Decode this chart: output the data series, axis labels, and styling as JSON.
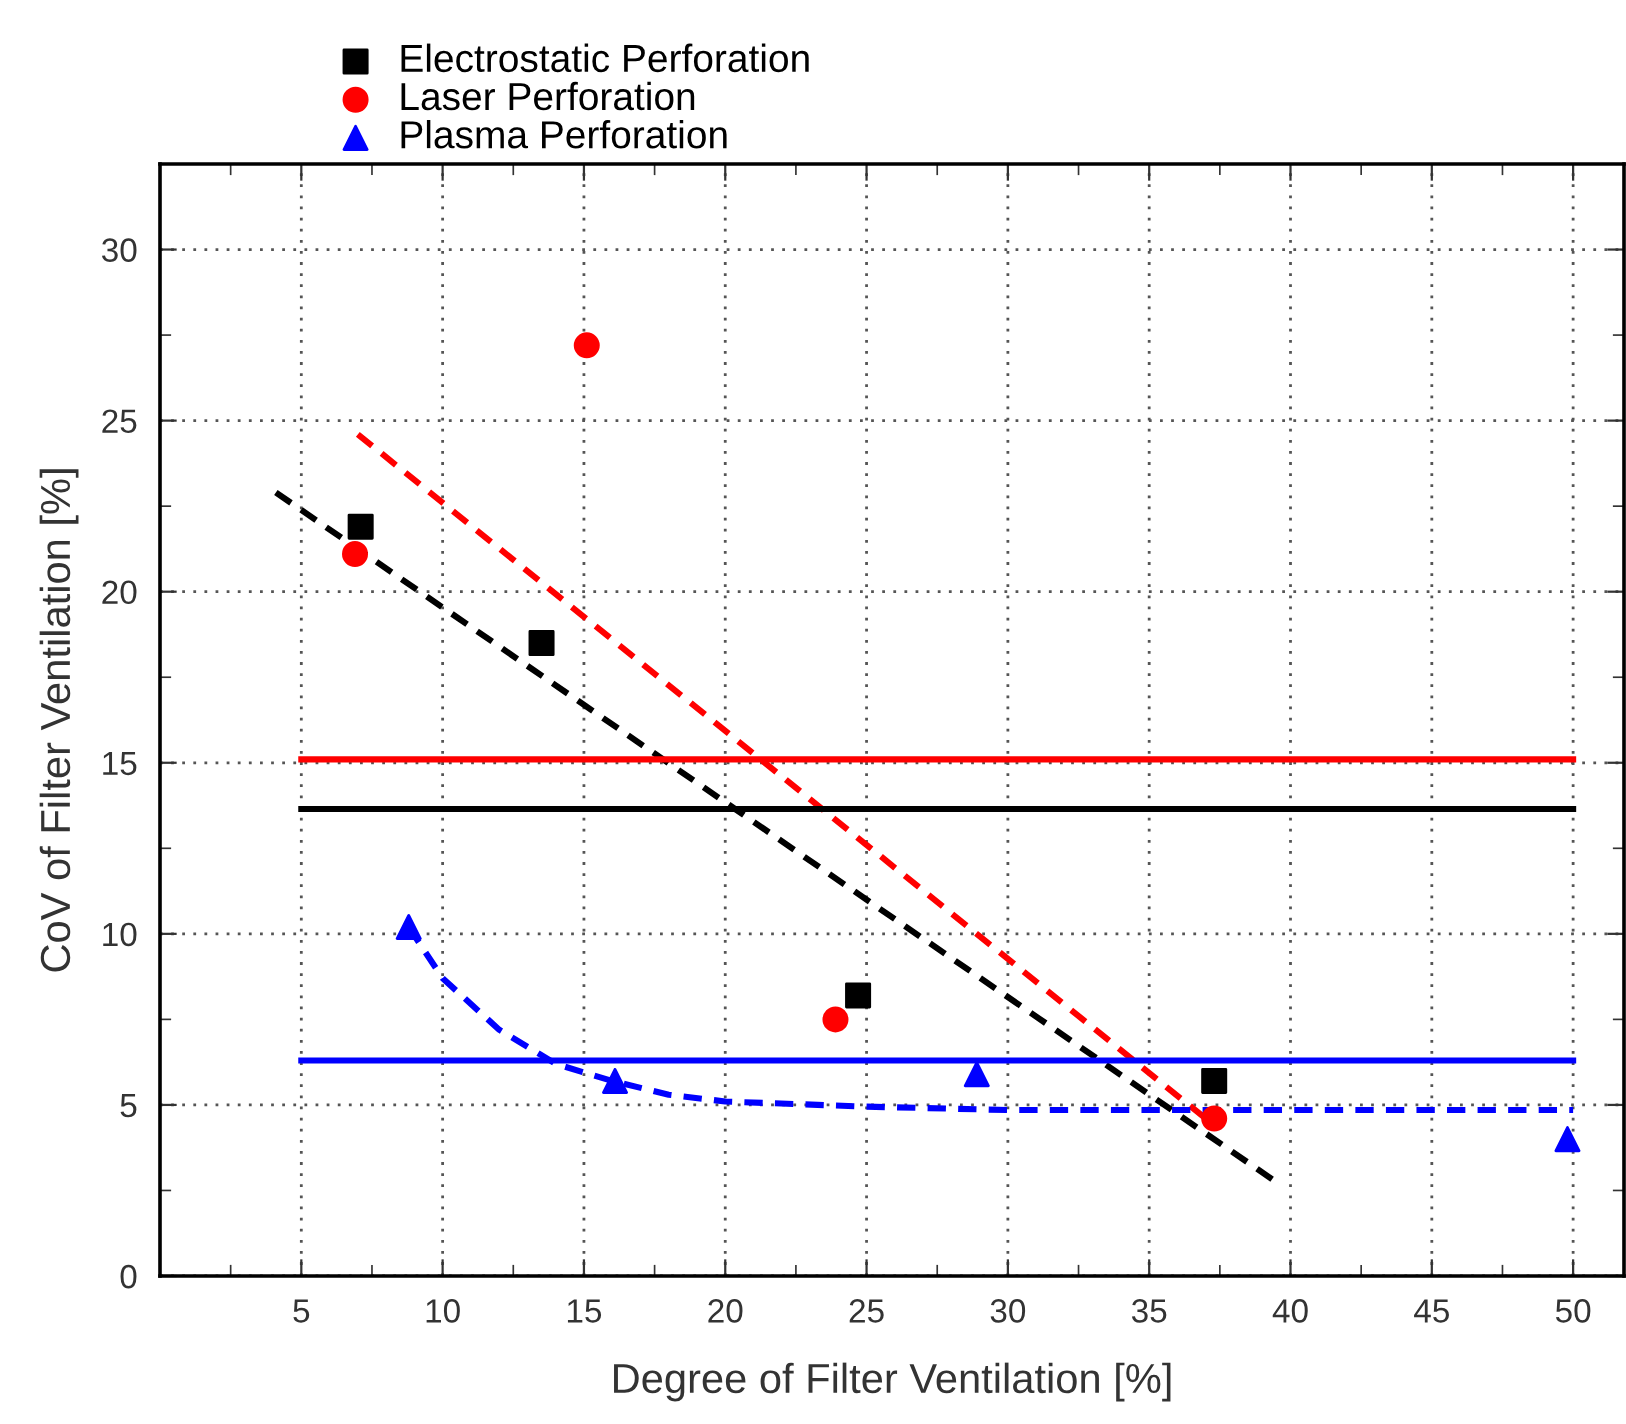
{
  "chart_data": {
    "type": "scatter",
    "xlabel": "Degree of Filter Ventilation [%]",
    "ylabel": "CoV of Filter Ventilation [%]",
    "xlim": [
      0,
      51.8
    ],
    "ylim": [
      0,
      32.5
    ],
    "xticks": [
      {
        "value": 2.5,
        "label": null
      },
      5,
      {
        "value": 7.5,
        "label": null
      },
      10,
      {
        "value": 12.5,
        "label": null
      },
      15,
      {
        "value": 17.5,
        "label": null
      },
      20,
      {
        "value": 22.5,
        "label": null
      },
      25,
      {
        "value": 27.5,
        "label": null
      },
      30,
      {
        "value": 32.5,
        "label": null
      },
      35,
      {
        "value": 37.5,
        "label": null
      },
      40,
      {
        "value": 42.5,
        "label": null
      },
      45,
      {
        "value": 47.5,
        "label": null
      },
      50
    ],
    "yticks": [
      0,
      {
        "value": 2.5,
        "label": null
      },
      5,
      {
        "value": 7.5,
        "label": null
      },
      10,
      {
        "value": 12.5,
        "label": null
      },
      15,
      {
        "value": 17.5,
        "label": null
      },
      20,
      {
        "value": 22.5,
        "label": null
      },
      25,
      {
        "value": 27.5,
        "label": null
      },
      30
    ],
    "grid": true,
    "legend": "top left",
    "series": [
      {
        "name": "Electrostatic Perforation",
        "color": "#000000",
        "marker": "square",
        "x": [
          7.1,
          13.5,
          24.7,
          37.3
        ],
        "values": [
          21.9,
          18.5,
          8.2,
          5.7
        ]
      },
      {
        "name": "Laser Perforation",
        "color": "#ff0000",
        "marker": "circle",
        "x": [
          6.9,
          15.1,
          23.9,
          37.3
        ],
        "values": [
          21.1,
          27.2,
          7.5,
          4.6
        ]
      },
      {
        "name": "Plasma Perforation",
        "color": "#0000ff",
        "marker": "triangle",
        "x": [
          8.8,
          16.1,
          28.9,
          49.8
        ],
        "values": [
          10.2,
          5.7,
          5.9,
          4.0
        ]
      },
      {
        "type": "line",
        "color": "#000000",
        "line_style": "dashed",
        "x": [
          4.1,
          39.4
        ],
        "values": [
          22.9,
          2.8
        ]
      },
      {
        "type": "line",
        "color": "#ff0000",
        "line_style": "dashed",
        "x": [
          7.0,
          37.3
        ],
        "values": [
          24.6,
          4.4
        ]
      },
      {
        "type": "line",
        "color": "#0000ff",
        "line_style": "dashed",
        "x": [
          8.8,
          10,
          12,
          14,
          16,
          18,
          20,
          25,
          30,
          40,
          50
        ],
        "values": [
          10.2,
          8.7,
          7.2,
          6.2,
          5.7,
          5.3,
          5.1,
          4.95,
          4.85,
          4.85,
          4.85
        ]
      },
      {
        "type": "line",
        "color": "#ff0000",
        "line_style": "solid",
        "x": [
          5,
          50
        ],
        "values": [
          15.1,
          15.1
        ]
      },
      {
        "type": "line",
        "color": "#000000",
        "line_style": "solid",
        "x": [
          5,
          50
        ],
        "values": [
          13.65,
          13.65
        ]
      },
      {
        "type": "line",
        "color": "#0000ff",
        "line_style": "solid",
        "x": [
          5,
          50
        ],
        "values": [
          6.3,
          6.3
        ]
      }
    ]
  }
}
